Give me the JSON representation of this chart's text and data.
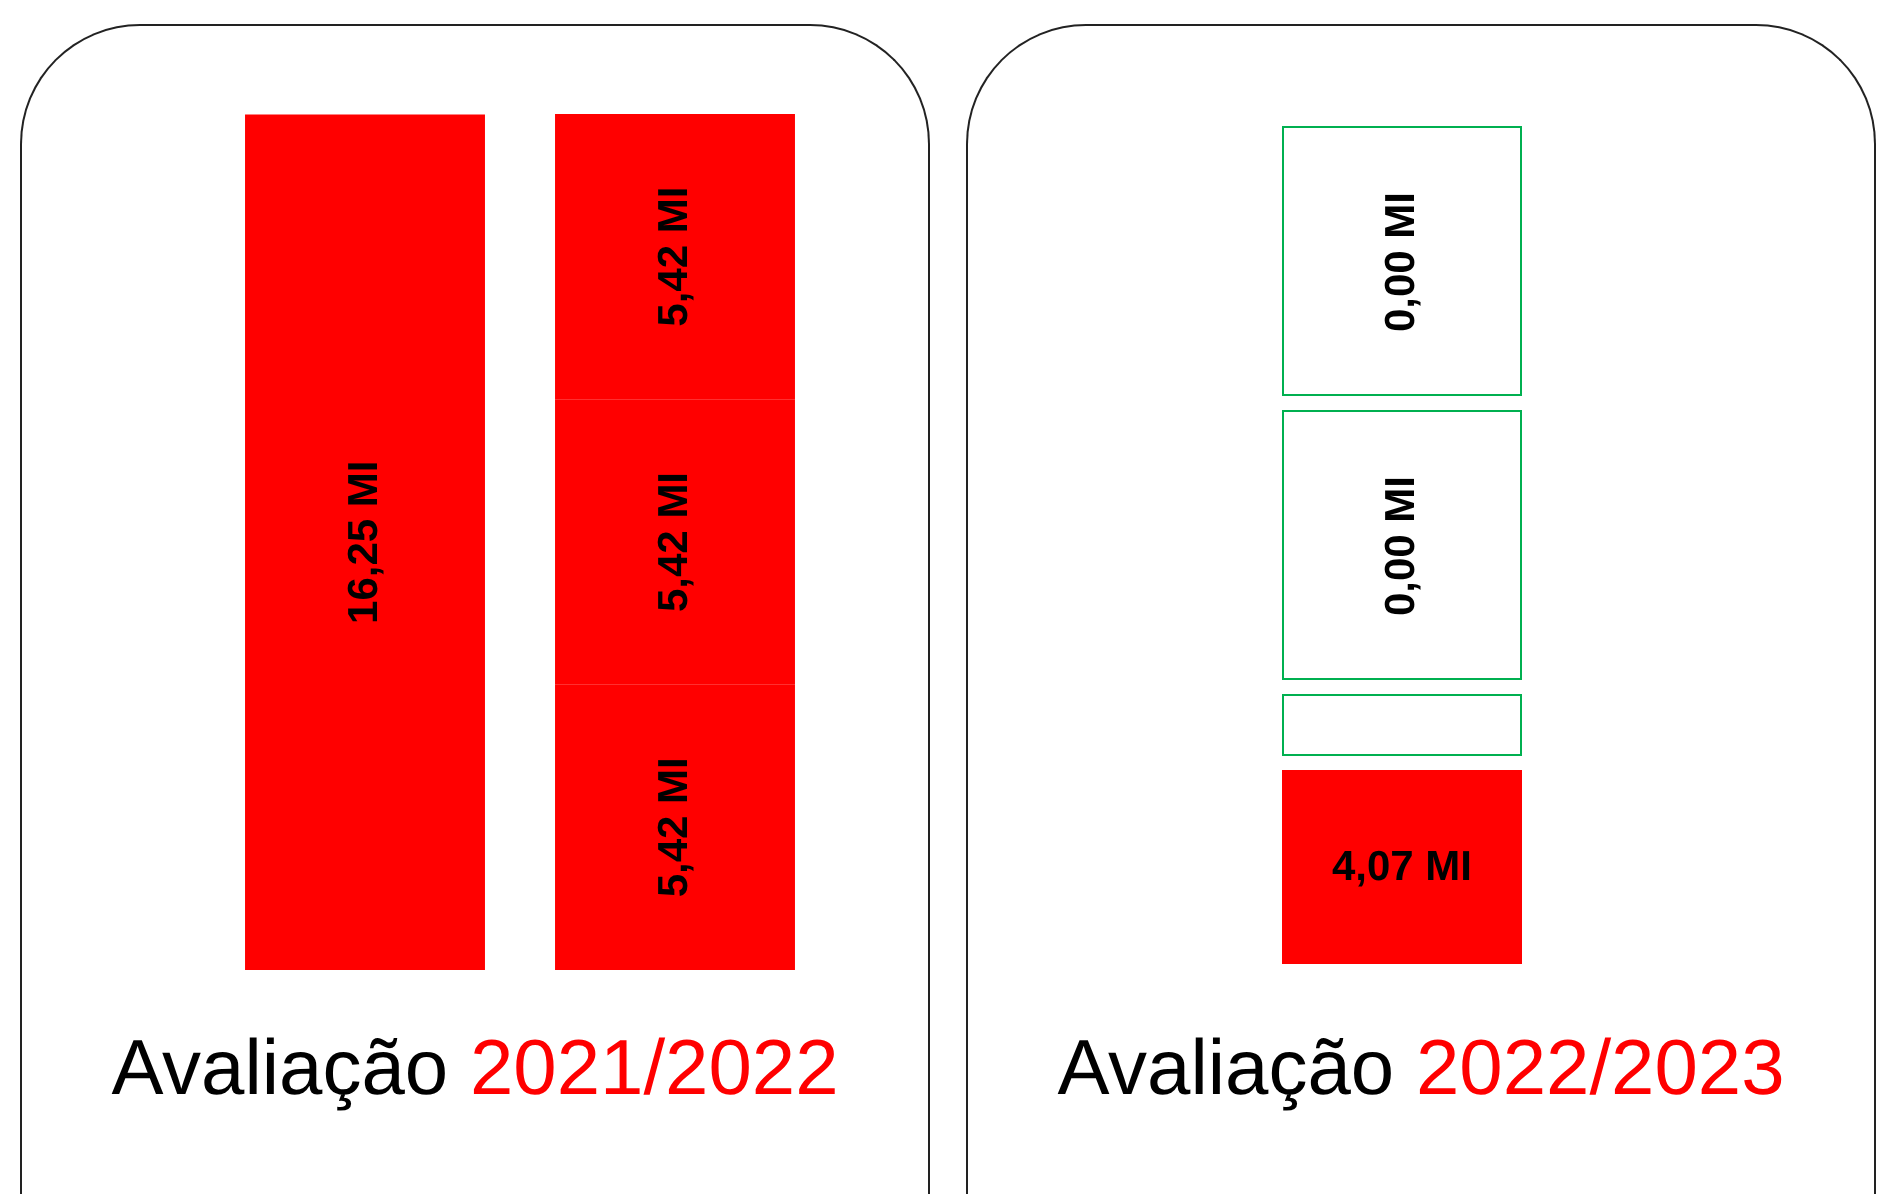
{
  "chart_data": [
    {
      "type": "bar",
      "title": "Avaliação 2021/2022",
      "stacked": true,
      "categories": [
        null,
        null
      ],
      "series": [
        {
          "color": "#ff0000",
          "values": [
            16.25,
            5.42
          ],
          "value_labels": [
            "16,25 MI",
            "5,42 MI"
          ]
        },
        {
          "color": "#ff0000",
          "values": [
            null,
            5.42
          ],
          "value_labels": [
            null,
            "5,42 MI"
          ]
        },
        {
          "color": "#ff0000",
          "values": [
            null,
            5.42
          ],
          "value_labels": [
            null,
            "5,42 MI"
          ]
        }
      ]
    },
    {
      "type": "other",
      "title": "Avaliação 2022/2023",
      "annotations": [
        "4,07 MI",
        "0,00 MI",
        "0,00 MI"
      ],
      "colors": [
        "#ff0000",
        "#00b050",
        "#00b050",
        "#00b050"
      ]
    }
  ]
}
